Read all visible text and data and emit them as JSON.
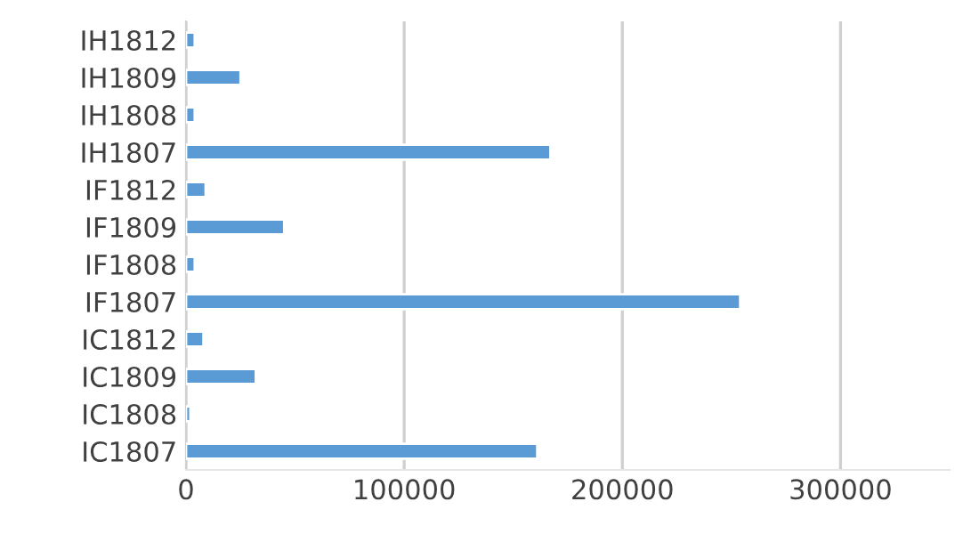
{
  "chart_data": {
    "type": "bar",
    "orientation": "horizontal",
    "categories": [
      "IH1812",
      "IH1809",
      "IH1808",
      "IH1807",
      "IF1812",
      "IF1809",
      "IF1808",
      "IF1807",
      "IC1812",
      "IC1809",
      "IC1808",
      "IC1807"
    ],
    "values": [
      4000,
      25000,
      4000,
      167000,
      9000,
      45000,
      4000,
      254000,
      8000,
      32000,
      2000,
      161000
    ],
    "color": "#5b9bd5",
    "xlim": [
      0,
      350000
    ],
    "xticks": [
      0,
      100000,
      200000,
      300000
    ],
    "grid": "x"
  }
}
